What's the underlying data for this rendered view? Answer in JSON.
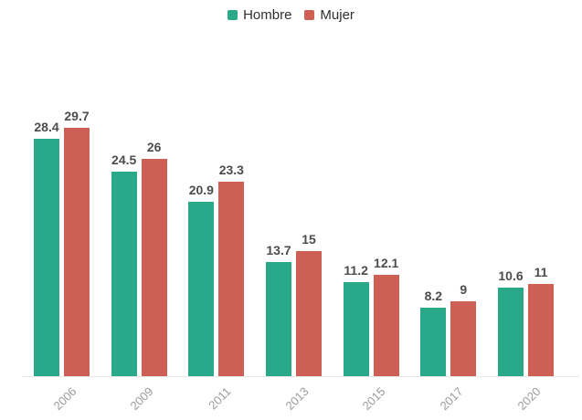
{
  "chart_data": {
    "type": "bar",
    "title": "",
    "xlabel": "",
    "ylabel": "",
    "categories": [
      "2006",
      "2009",
      "2011",
      "2013",
      "2015",
      "2017",
      "2020"
    ],
    "series": [
      {
        "name": "Hombre",
        "color": "#2aa98a",
        "values": [
          28.4,
          24.5,
          20.9,
          13.7,
          11.2,
          8.2,
          10.6
        ],
        "labels": [
          "28.4",
          "24.5",
          "20.9",
          "13.7",
          "11.2",
          "8.2",
          "10.6"
        ]
      },
      {
        "name": "Mujer",
        "color": "#cd5f55",
        "values": [
          29.7,
          26,
          23.3,
          15,
          12.1,
          9,
          11
        ],
        "labels": [
          "29.7",
          "26",
          "23.3",
          "15",
          "12.1",
          "9",
          "11"
        ]
      }
    ],
    "ylim": [
      0,
      30
    ],
    "legend_position": "top",
    "grid": false
  },
  "style_colors": {
    "value_label": "#4c4c4c",
    "axis_label": "#9b9b9b",
    "baseline": "#e7e7e7",
    "background": "#ffffff"
  }
}
